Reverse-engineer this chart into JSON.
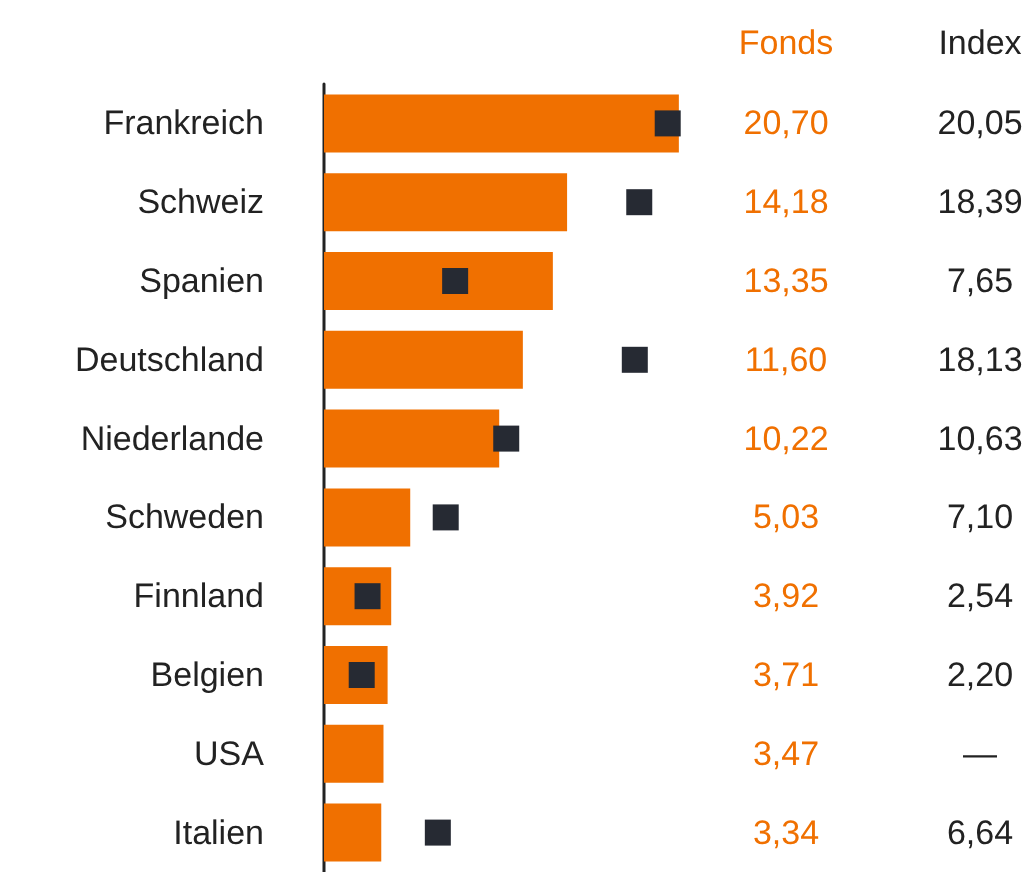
{
  "chart_data": {
    "type": "bar",
    "orientation": "horizontal",
    "categories": [
      "Frankreich",
      "Schweiz",
      "Spanien",
      "Deutschland",
      "Niederlande",
      "Schweden",
      "Finnland",
      "Belgien",
      "USA",
      "Italien"
    ],
    "series": [
      {
        "name": "Fonds",
        "color": "#f07000",
        "values": [
          20.7,
          14.18,
          13.35,
          11.6,
          10.22,
          5.03,
          3.92,
          3.71,
          3.47,
          3.34
        ],
        "value_labels": [
          "20,70",
          "14,18",
          "13,35",
          "11,60",
          "10,22",
          "5,03",
          "3,92",
          "3,71",
          "3,47",
          "3,34"
        ]
      },
      {
        "name": "Index",
        "type": "scatter",
        "color": "#262a33",
        "marker": "square",
        "values": [
          20.05,
          18.39,
          7.65,
          18.13,
          10.63,
          7.1,
          2.54,
          2.2,
          null,
          6.64
        ],
        "value_labels": [
          "20,05",
          "18,39",
          "7,65",
          "18,13",
          "10,63",
          "7,10",
          "2,54",
          "2,20",
          "—",
          "6,64"
        ]
      }
    ],
    "xlim": [
      0,
      21
    ],
    "tick_labels": "y",
    "grid": false,
    "legend": false
  }
}
